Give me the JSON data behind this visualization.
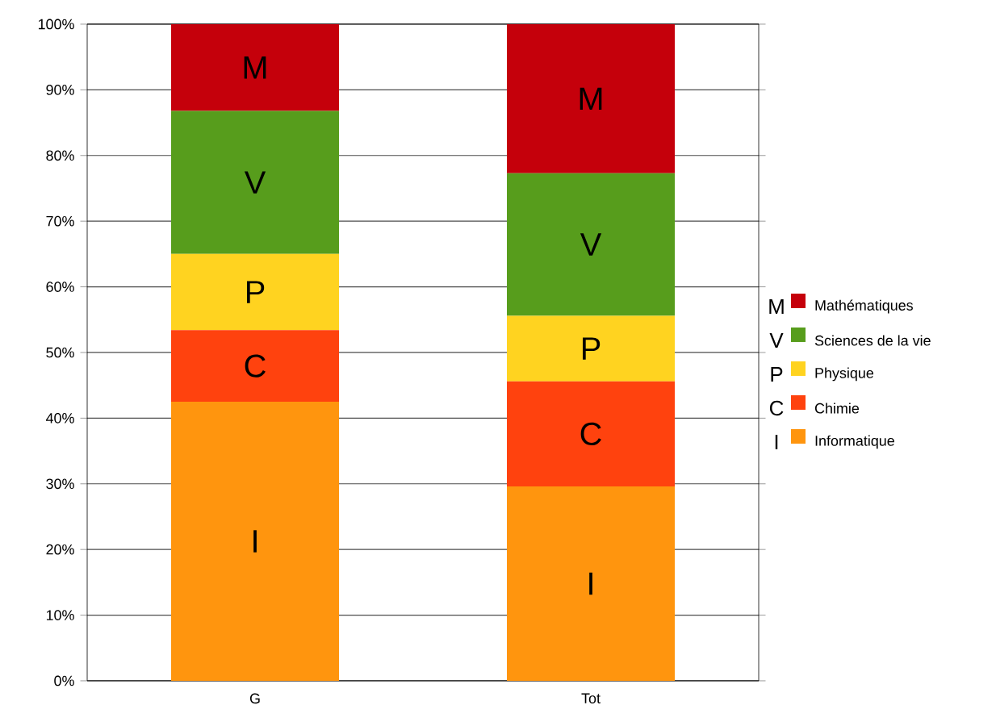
{
  "chart_data": {
    "type": "bar",
    "stacked": true,
    "categories": [
      "G",
      "Tot"
    ],
    "series": [
      {
        "name": "Informatique",
        "color": "#ff950e",
        "values": [
          42.5,
          29.6
        ]
      },
      {
        "name": "Chimie",
        "color": "#ff420e",
        "values": [
          10.9,
          16.0
        ]
      },
      {
        "name": "Physique",
        "color": "#ffd320",
        "values": [
          11.6,
          10.0
        ]
      },
      {
        "name": "Sciences de la vie",
        "color": "#579d1c",
        "values": [
          21.8,
          21.7
        ]
      },
      {
        "name": "Mathématiques",
        "color": "#c5000b",
        "values": [
          13.2,
          22.7
        ]
      }
    ],
    "ylim": [
      0,
      100
    ],
    "yticks": [
      {
        "value": 0,
        "label": "0%"
      },
      {
        "value": 10,
        "label": "10%"
      },
      {
        "value": 20,
        "label": "20%"
      },
      {
        "value": 30,
        "label": "30%"
      },
      {
        "value": 40,
        "label": "40%"
      },
      {
        "value": 50,
        "label": "50%"
      },
      {
        "value": 60,
        "label": "60%"
      },
      {
        "value": 70,
        "label": "70%"
      },
      {
        "value": 80,
        "label": "80%"
      },
      {
        "value": 90,
        "label": "90%"
      },
      {
        "value": 100,
        "label": "100%"
      }
    ],
    "grid": "y",
    "legend": "right",
    "annotations": [
      "I",
      "C",
      "P",
      "V",
      "M",
      "I",
      "C",
      "P",
      "V",
      "M",
      "M",
      "V",
      "P",
      "C",
      "I"
    ]
  }
}
